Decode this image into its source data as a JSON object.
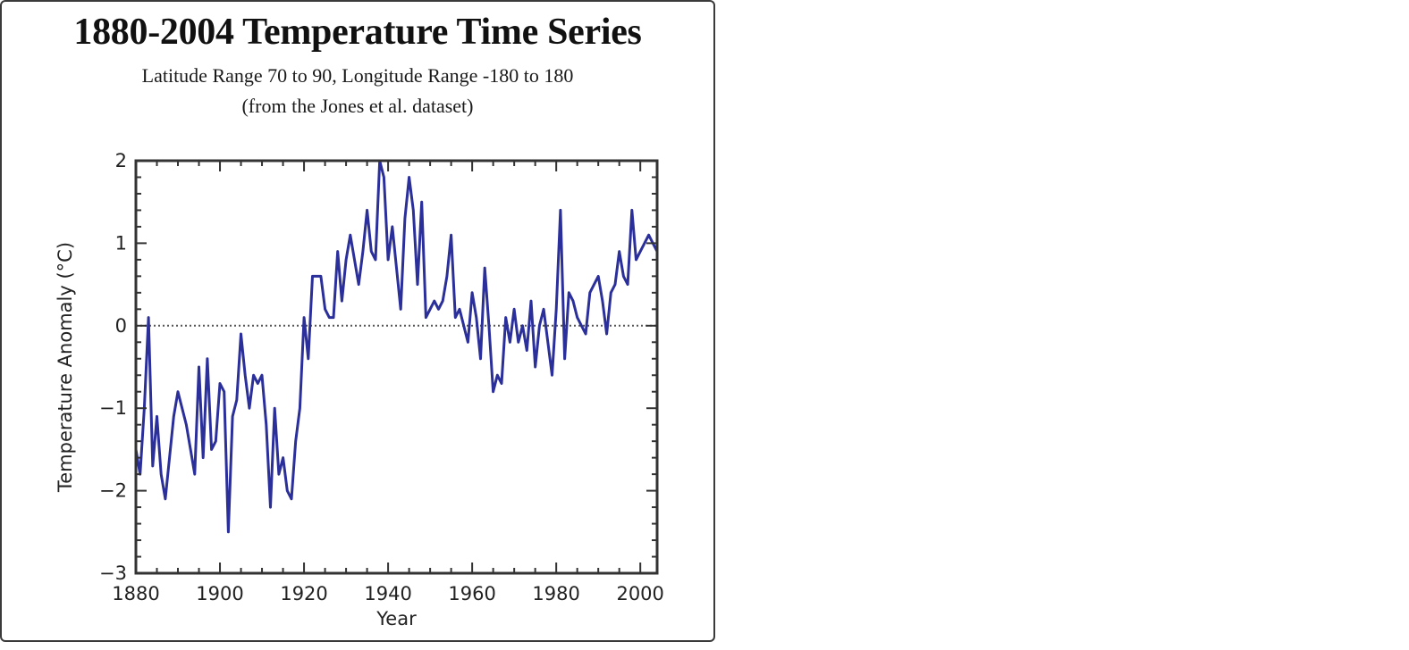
{
  "chart_data": {
    "type": "line",
    "title": "1880-2004 Temperature Time Series",
    "subtitle": [
      "Latitude Range 70 to 90, Longitude Range -180 to 180",
      "(from the Jones et al. dataset)"
    ],
    "xlabel": "Year",
    "ylabel": "Temperature Anomaly (°C)",
    "xlim": [
      1880,
      2004
    ],
    "ylim": [
      -3,
      2
    ],
    "xticks": [
      1880,
      1900,
      1920,
      1940,
      1960,
      1980,
      2000
    ],
    "yticks": [
      -3,
      -2,
      -1,
      0,
      1,
      2
    ],
    "zero_line": "dotted",
    "grid": false,
    "line_color": "#2b2f9a",
    "series": [
      {
        "x": [
          1880,
          1881,
          1882,
          1883,
          1884,
          1885,
          1886,
          1887,
          1888,
          1889,
          1890,
          1891,
          1892,
          1893,
          1894,
          1895,
          1896,
          1897,
          1898,
          1899,
          1900,
          1901,
          1902,
          1903,
          1904,
          1905,
          1906,
          1907,
          1908,
          1909,
          1910,
          1911,
          1912,
          1913,
          1914,
          1915,
          1916,
          1917,
          1918,
          1919,
          1920,
          1921,
          1922,
          1923,
          1924,
          1925,
          1926,
          1927,
          1928,
          1929,
          1930,
          1931,
          1932,
          1933,
          1934,
          1935,
          1936,
          1937,
          1938,
          1939,
          1940,
          1941,
          1942,
          1943,
          1944,
          1945,
          1946,
          1947,
          1948,
          1949,
          1950,
          1951,
          1952,
          1953,
          1954,
          1955,
          1956,
          1957,
          1958,
          1959,
          1960,
          1961,
          1962,
          1963,
          1964,
          1965,
          1966,
          1967,
          1968,
          1969,
          1970,
          1971,
          1972,
          1973,
          1974,
          1975,
          1976,
          1977,
          1978,
          1979,
          1980,
          1981,
          1982,
          1983,
          1984,
          1985,
          1986,
          1987,
          1988,
          1989,
          1990,
          1991,
          1992,
          1993,
          1994,
          1995,
          1996,
          1997,
          1998,
          1999,
          2000,
          2001,
          2002,
          2003,
          2004
        ],
        "values": [
          -1.5,
          -1.8,
          -1.0,
          0.1,
          -1.7,
          -1.1,
          -1.8,
          -2.1,
          -1.6,
          -1.1,
          -0.8,
          -1.0,
          -1.2,
          -1.5,
          -1.8,
          -0.5,
          -1.6,
          -0.4,
          -1.5,
          -1.4,
          -0.7,
          -0.8,
          -2.5,
          -1.1,
          -0.9,
          -0.1,
          -0.6,
          -1.0,
          -0.6,
          -0.7,
          -0.6,
          -1.2,
          -2.2,
          -1.0,
          -1.8,
          -1.6,
          -2.0,
          -2.1,
          -1.4,
          -1.0,
          0.1,
          -0.4,
          0.6,
          0.6,
          0.6,
          0.2,
          0.1,
          0.1,
          0.9,
          0.3,
          0.8,
          1.1,
          0.8,
          0.5,
          0.9,
          1.4,
          0.9,
          0.8,
          2.0,
          1.8,
          0.8,
          1.2,
          0.7,
          0.2,
          1.3,
          1.8,
          1.4,
          0.5,
          1.5,
          0.1,
          0.2,
          0.3,
          0.2,
          0.3,
          0.6,
          1.1,
          0.1,
          0.2,
          0.0,
          -0.2,
          0.4,
          0.1,
          -0.4,
          0.7,
          0.0,
          -0.8,
          -0.6,
          -0.7,
          0.1,
          -0.2,
          0.2,
          -0.2,
          0.0,
          -0.3,
          0.3,
          -0.5,
          0.0,
          0.2,
          -0.2,
          -0.6,
          0.2,
          1.4,
          -0.4,
          0.4,
          0.3,
          0.1,
          0.0,
          -0.1,
          0.4,
          0.5,
          0.6,
          0.3,
          -0.1,
          0.4,
          0.5,
          0.9,
          0.6,
          0.5,
          1.4,
          0.8,
          0.9,
          1.0,
          1.1,
          1.0,
          0.9
        ]
      }
    ]
  }
}
